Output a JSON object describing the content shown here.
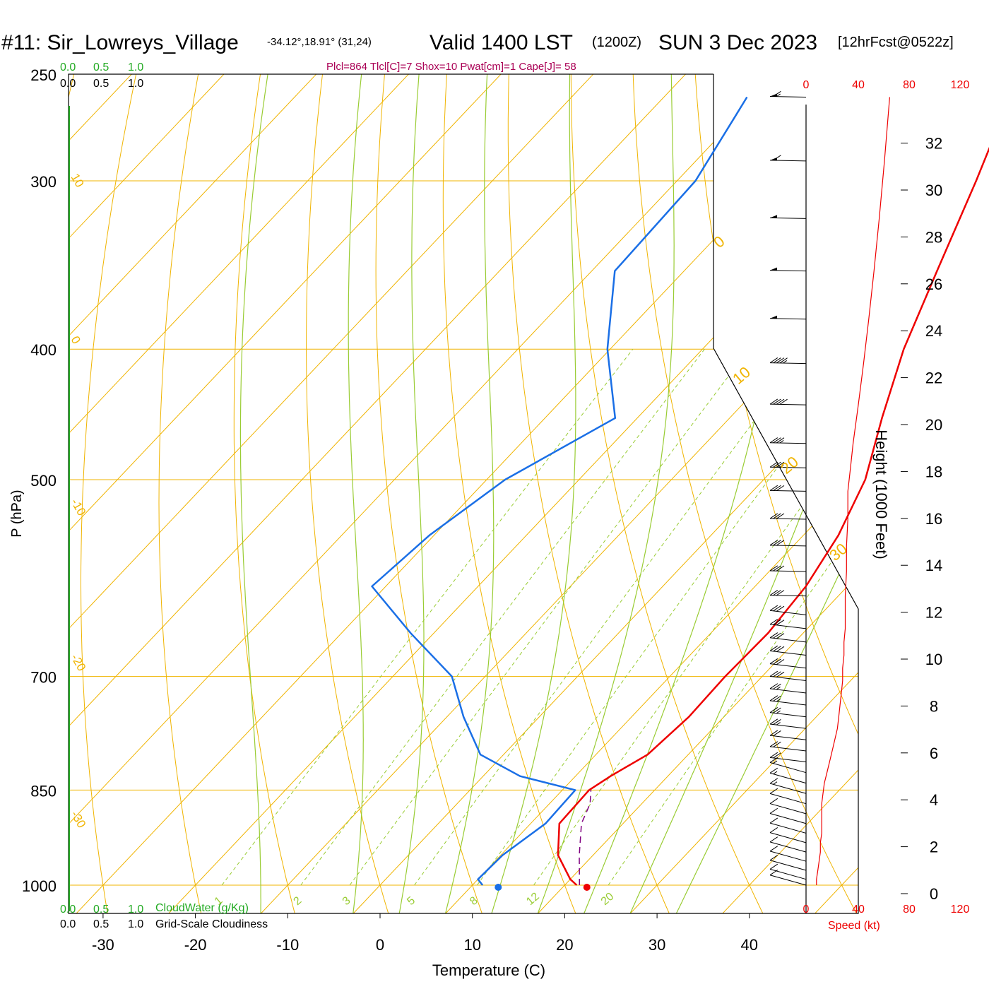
{
  "header": {
    "station": "#11: Sir_Lowreys_Village",
    "coords": "-34.12°,18.91° (31,24)",
    "valid": "Valid 1400 LST",
    "zulu": "(1200Z)",
    "date": "SUN 3 Dec 2023",
    "forecast": "[12hrFcst@0522z]",
    "params": "Plcl=864 Tlcl[C]=7 Shox=10 Pwat[cm]=1 Cape[J]= 58"
  },
  "cloud_scales": {
    "cloudwater_ticks": [
      "0.0",
      "0.5",
      "1.0"
    ],
    "cloudiness_ticks": [
      "0.0",
      "0.5",
      "1.0"
    ],
    "cloudwater_label": "CloudWater (g/Kg)",
    "cloudiness_label": "Grid-Scale Cloudiness"
  },
  "speed_scale": {
    "ticks": [
      "0",
      "40",
      "80",
      "120"
    ],
    "label": "Speed (kt)"
  },
  "mixing_ratio_labels": [
    "1",
    "2",
    "3",
    "5",
    "8",
    "12",
    "20"
  ],
  "isotherm_labels": [
    "10",
    "0",
    "-10",
    "-20",
    "-30"
  ],
  "adiabat_labels": [
    "0",
    "10",
    "20",
    "30"
  ],
  "colors": {
    "temperature": "#ee0000",
    "dewpoint": "#1a6fe6",
    "parcel": "#800080",
    "grid": "#f0b400",
    "mixing": "#99cc33",
    "cloud": "#22aa22",
    "title_params": "#aa0055"
  },
  "chart_data": {
    "type": "line",
    "title": "",
    "xlabel": "Temperature (C)",
    "ylabel": "P (hPa)",
    "y2label": "Height (1000 Feet)",
    "x_ticks": [
      -30,
      -20,
      -10,
      0,
      10,
      20,
      30,
      40
    ],
    "y_ticks": [
      250,
      300,
      400,
      500,
      700,
      850,
      1000
    ],
    "height_ticks": [
      0,
      2,
      4,
      6,
      8,
      10,
      12,
      14,
      16,
      18,
      20,
      22,
      24,
      26,
      28,
      30,
      32
    ],
    "surface": {
      "temperature": 22.4,
      "dewpoint": 12.8
    },
    "series": [
      {
        "name": "Temperature",
        "points": [
          [
            21.3,
            1000
          ],
          [
            20.0,
            990
          ],
          [
            16.2,
            950
          ],
          [
            13.1,
            900
          ],
          [
            12.9,
            850
          ],
          [
            13.8,
            830
          ],
          [
            15.6,
            800
          ],
          [
            16.2,
            750
          ],
          [
            16.0,
            700
          ],
          [
            16.2,
            650
          ],
          [
            15.5,
            600
          ],
          [
            13.8,
            550
          ],
          [
            11.0,
            500
          ],
          [
            6.5,
            450
          ],
          [
            1.8,
            400
          ],
          [
            -2.6,
            350
          ],
          [
            -7.6,
            300
          ],
          [
            -12.5,
            260
          ]
        ]
      },
      {
        "name": "Dewpoint",
        "points": [
          [
            11.1,
            1000
          ],
          [
            10.0,
            990
          ],
          [
            10.2,
            950
          ],
          [
            11.6,
            900
          ],
          [
            11.4,
            850
          ],
          [
            4.0,
            830
          ],
          [
            -2.5,
            800
          ],
          [
            -8.2,
            750
          ],
          [
            -13.6,
            700
          ],
          [
            -22.5,
            650
          ],
          [
            -31.5,
            600
          ],
          [
            -30.5,
            550
          ],
          [
            -28.0,
            500
          ],
          [
            -22.4,
            450
          ],
          [
            -30.3,
            400
          ],
          [
            -37.5,
            350
          ],
          [
            -38.0,
            300
          ],
          [
            -40.2,
            270
          ],
          [
            -41.0,
            260
          ]
        ]
      },
      {
        "name": "Parcel",
        "points": [
          [
            21.6,
            1000
          ],
          [
            18.5,
            950
          ],
          [
            15.5,
            900
          ],
          [
            14.4,
            870
          ],
          [
            13.1,
            850
          ]
        ]
      }
    ],
    "wind_kt": [
      [
        1000,
        8
      ],
      [
        990,
        8
      ],
      [
        975,
        9
      ],
      [
        960,
        10
      ],
      [
        945,
        11
      ],
      [
        930,
        11
      ],
      [
        915,
        12
      ],
      [
        900,
        12
      ],
      [
        885,
        12
      ],
      [
        870,
        12
      ],
      [
        855,
        13
      ],
      [
        840,
        14
      ],
      [
        825,
        16
      ],
      [
        810,
        18
      ],
      [
        795,
        20
      ],
      [
        780,
        22
      ],
      [
        765,
        24
      ],
      [
        750,
        25
      ],
      [
        735,
        26
      ],
      [
        720,
        27
      ],
      [
        705,
        28
      ],
      [
        690,
        28
      ],
      [
        675,
        29
      ],
      [
        660,
        29
      ],
      [
        645,
        30
      ],
      [
        630,
        30
      ],
      [
        610,
        30
      ],
      [
        585,
        31
      ],
      [
        560,
        31
      ],
      [
        535,
        32
      ],
      [
        510,
        32
      ],
      [
        490,
        34
      ],
      [
        470,
        36
      ],
      [
        440,
        40
      ],
      [
        410,
        44
      ],
      [
        380,
        48
      ],
      [
        350,
        52
      ],
      [
        320,
        56
      ],
      [
        290,
        60
      ],
      [
        260,
        64
      ]
    ]
  }
}
